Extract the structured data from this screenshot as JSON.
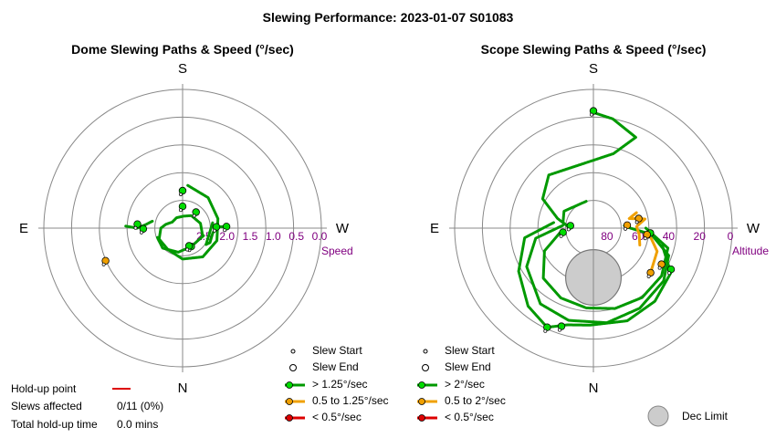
{
  "title": "Slewing Performance: 2023-01-07 S01083",
  "colors": {
    "fast": "#009900",
    "medium": "#f0a000",
    "slow": "#dd0000",
    "axis": "#888888",
    "tick": "#800080",
    "dec": "#cccccc"
  },
  "chart_data": [
    {
      "type": "polar",
      "title": "Dome Slewing Paths & Speed (°/sec)",
      "compass": {
        "top": "S",
        "bottom": "N",
        "left": "E",
        "right": "W"
      },
      "radial_label": "Speed",
      "radial_ticks": [
        "2.5",
        "2.0",
        "1.5",
        "1.0",
        "0.5",
        "0.0"
      ],
      "radial_values": [
        2.5,
        2.0,
        1.5,
        1.0,
        0.5,
        0.0
      ],
      "r_range": [
        0,
        3
      ],
      "r_direction": "descending outward",
      "paths": [
        {
          "speed_class": "fast",
          "points": [
            [
              7,
              2.07
            ],
            [
              40,
              2.14
            ],
            [
              75,
              2.21
            ],
            [
              110,
              2.21
            ],
            [
              145,
              2.24
            ],
            [
              180,
              2.33
            ],
            [
              215,
              2.44
            ],
            [
              245,
              2.44
            ],
            [
              270,
              2.53
            ],
            [
              283,
              2.63
            ],
            [
              300,
              2.74
            ],
            [
              330,
              2.74
            ],
            [
              5,
              2.74
            ],
            [
              35,
              2.67
            ],
            [
              75,
              2.6
            ],
            [
              110,
              2.54
            ]
          ]
        },
        {
          "speed_class": "fast",
          "points": [
            [
              88,
              2.05
            ],
            [
              88,
              2.27
            ],
            [
              100,
              2.34
            ],
            [
              118,
              2.33
            ],
            [
              125,
              2.38
            ],
            [
              80,
              2.34
            ]
          ]
        },
        {
          "speed_class": "fast",
          "points": [
            [
              272,
              1.77
            ],
            [
              270,
              2.02
            ],
            [
              275,
              2.19
            ],
            [
              283,
              2.33
            ]
          ]
        },
        {
          "speed_class": "fast",
          "points": [
            [
              110,
              2.52
            ],
            [
              155,
              2.56
            ],
            [
              190,
              2.47
            ],
            [
              225,
              2.39
            ],
            [
              250,
              2.42
            ]
          ]
        }
      ],
      "markers": [
        {
          "speed_class": "fast",
          "angle": 0,
          "r": 2.19
        },
        {
          "speed_class": "fast",
          "angle": 275,
          "r": 2.02
        },
        {
          "speed_class": "fast",
          "angle": 269,
          "r": 2.15
        },
        {
          "speed_class": "fast",
          "angle": 88,
          "r": 2.05
        },
        {
          "speed_class": "fast",
          "angle": 88,
          "r": 2.27
        },
        {
          "speed_class": "fast",
          "angle": 40,
          "r": 2.55
        },
        {
          "speed_class": "fast",
          "angle": 0,
          "r": 2.53
        },
        {
          "speed_class": "fast",
          "angle": 155,
          "r": 2.56
        },
        {
          "speed_class": "fast",
          "angle": 160,
          "r": 2.59
        },
        {
          "speed_class": "medium",
          "angle": 247,
          "r": 1.19
        }
      ]
    },
    {
      "type": "polar",
      "title": "Scope Slewing Paths & Speed (°/sec)",
      "compass": {
        "top": "S",
        "bottom": "N",
        "left": "E",
        "right": "W"
      },
      "radial_label": "Altitude",
      "radial_ticks": [
        "80",
        "60",
        "40",
        "20",
        "0"
      ],
      "radial_values": [
        80,
        60,
        40,
        20,
        0
      ],
      "r_range": [
        0,
        90
      ],
      "r_direction": "descending outward",
      "dec_limit": {
        "angle": 180,
        "alt": 58,
        "radius_alt": 18
      },
      "paths": [
        {
          "speed_class": "fast",
          "points": [
            [
              0,
              15
            ],
            [
              10,
              18
            ],
            [
              25,
              25
            ],
            [
              15,
              40
            ],
            [
              320,
              45
            ],
            [
              300,
              52
            ],
            [
              285,
              66
            ],
            [
              270,
              75
            ]
          ]
        },
        {
          "speed_class": "fast",
          "points": [
            [
              262,
              68
            ],
            [
              245,
              55
            ],
            [
              225,
              44
            ],
            [
              205,
              40
            ],
            [
              185,
              38
            ],
            [
              165,
              36
            ],
            [
              145,
              35
            ],
            [
              125,
              36
            ],
            [
              105,
              40
            ],
            [
              90,
              56
            ]
          ]
        },
        {
          "speed_class": "fast",
          "points": [
            [
              275,
              70
            ],
            [
              260,
              52
            ],
            [
              240,
              40
            ],
            [
              215,
              30
            ],
            [
              195,
              28
            ],
            [
              172,
              28
            ],
            [
              150,
              30
            ],
            [
              127,
              33
            ],
            [
              110,
              38
            ],
            [
              95,
              53
            ]
          ]
        },
        {
          "speed_class": "fast",
          "points": [
            [
              278,
              64
            ],
            [
              262,
              45
            ],
            [
              240,
              34
            ],
            [
              220,
              24
            ],
            [
              205,
              19
            ],
            [
              195,
              25
            ],
            [
              182,
              27
            ],
            [
              160,
              26
            ],
            [
              140,
              28
            ],
            [
              120,
              32
            ],
            [
              104,
              44
            ]
          ]
        },
        {
          "speed_class": "fast",
          "points": [
            [
              345,
              72
            ],
            [
              300,
              68
            ],
            [
              280,
              70
            ],
            [
              270,
              75
            ]
          ]
        },
        {
          "speed_class": "fast",
          "points": [
            [
              95,
              56
            ],
            [
              90,
              66
            ],
            [
              85,
              70
            ]
          ]
        }
      ],
      "medium_paths": [
        {
          "speed_class": "medium",
          "points": [
            [
              110,
              58
            ],
            [
              98,
              60
            ],
            [
              88,
              62
            ],
            [
              80,
              56
            ],
            [
              75,
              66
            ],
            [
              70,
              60
            ]
          ]
        },
        {
          "speed_class": "medium",
          "points": [
            [
              128,
              43
            ],
            [
              110,
              46
            ],
            [
              100,
              52
            ]
          ]
        }
      ],
      "markers": [
        {
          "speed_class": "fast",
          "angle": 0,
          "r": 14
        },
        {
          "speed_class": "fast",
          "angle": 276,
          "r": 75
        },
        {
          "speed_class": "fast",
          "angle": 205,
          "r": 19
        },
        {
          "speed_class": "fast",
          "angle": 198,
          "r": 23
        },
        {
          "speed_class": "fast",
          "angle": 262,
          "r": 70
        },
        {
          "speed_class": "fast",
          "angle": 95,
          "r": 53
        },
        {
          "speed_class": "fast",
          "angle": 118,
          "r": 33
        },
        {
          "speed_class": "medium",
          "angle": 128,
          "r": 43
        },
        {
          "speed_class": "medium",
          "angle": 118,
          "r": 40
        },
        {
          "speed_class": "medium",
          "angle": 97,
          "r": 55
        },
        {
          "speed_class": "medium",
          "angle": 85,
          "r": 68
        },
        {
          "speed_class": "medium",
          "angle": 78,
          "r": 60
        }
      ]
    }
  ],
  "legend_left": {
    "slew_start": "Slew Start",
    "slew_end": "Slew End",
    "fast": "> 1.25°/sec",
    "medium": "0.5 to 1.25°/sec",
    "slow": "< 0.5°/sec"
  },
  "legend_right": {
    "slew_start": "Slew Start",
    "slew_end": "Slew End",
    "fast": "> 2°/sec",
    "medium": "0.5 to 2°/sec",
    "slow": "< 0.5°/sec",
    "dec_limit": "Dec Limit"
  },
  "stats": {
    "holdup_label": "Hold-up point",
    "slews_label": "Slews affected",
    "slews_value": "0/11 (0%)",
    "total_label": "Total hold-up time",
    "total_value": "0.0 mins"
  }
}
